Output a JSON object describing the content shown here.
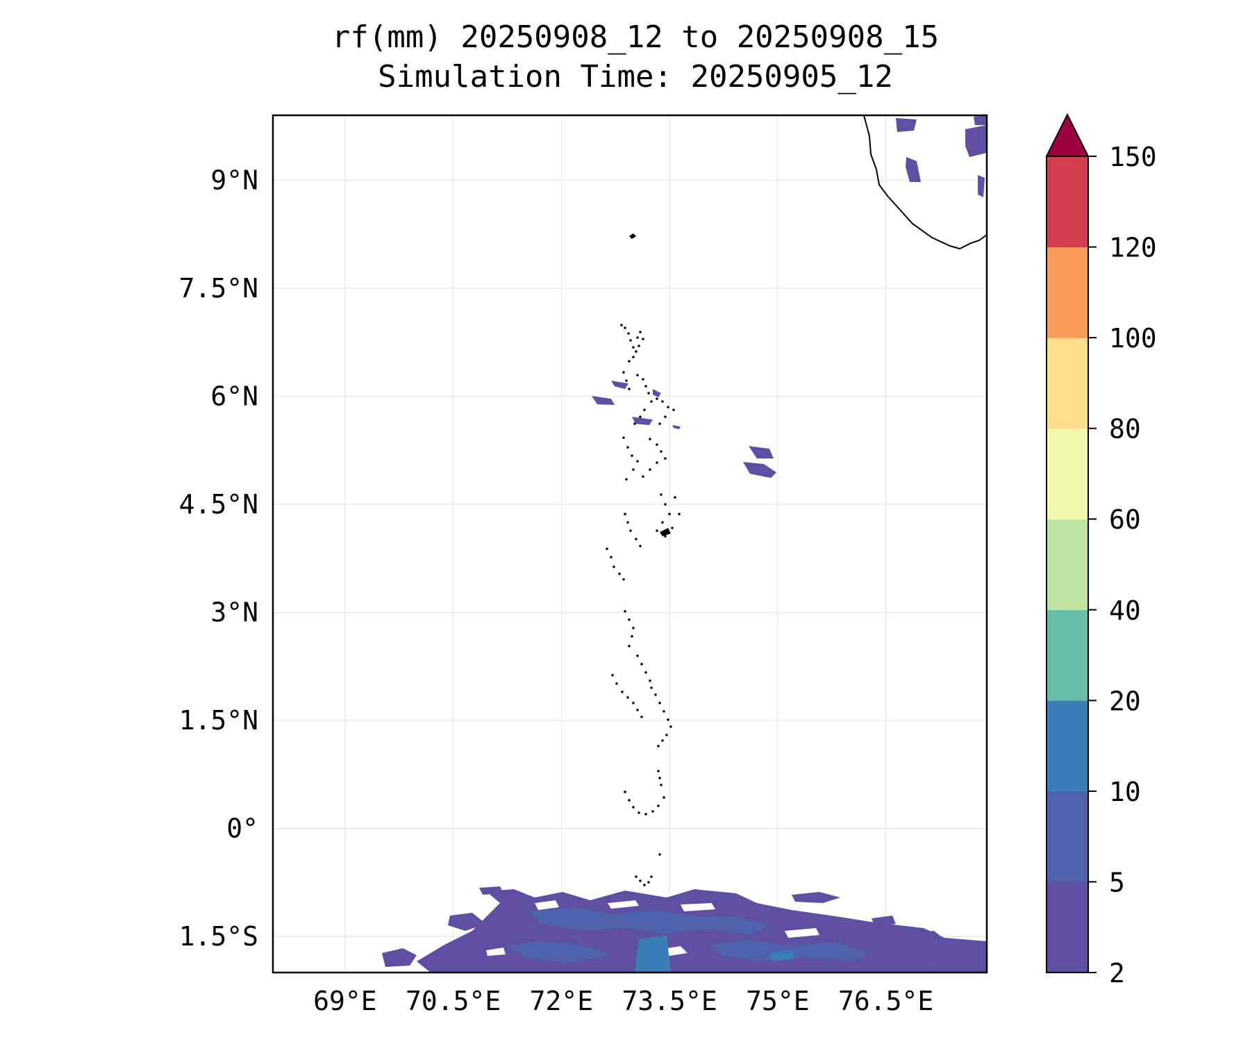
{
  "title": {
    "line1": "rf(mm) 20250908_12 to 20250908_15",
    "line2": "Simulation Time: 20250905_12"
  },
  "map": {
    "lon_range": [
      68.0,
      77.9
    ],
    "lat_range": [
      -2.0,
      9.9
    ],
    "x_ticks": [
      {
        "value": 69.0,
        "label": "69°E"
      },
      {
        "value": 70.5,
        "label": "70.5°E"
      },
      {
        "value": 72.0,
        "label": "72°E"
      },
      {
        "value": 73.5,
        "label": "73.5°E"
      },
      {
        "value": 75.0,
        "label": "75°E"
      },
      {
        "value": 76.5,
        "label": "76.5°E"
      }
    ],
    "y_ticks": [
      {
        "value": 9.0,
        "label": "9°N"
      },
      {
        "value": 7.5,
        "label": "7.5°N"
      },
      {
        "value": 6.0,
        "label": "6°N"
      },
      {
        "value": 4.5,
        "label": "4.5°N"
      },
      {
        "value": 3.0,
        "label": "3°N"
      },
      {
        "value": 1.5,
        "label": "1.5°N"
      },
      {
        "value": 0.0,
        "label": "0°"
      },
      {
        "value": -1.5,
        "label": "1.5°S"
      }
    ],
    "grid": true,
    "coastline_color": "#000000"
  },
  "colorbar": {
    "position": "right",
    "extend": "max",
    "levels": [
      {
        "label": "2",
        "color": "#5e4fa2"
      },
      {
        "label": "5",
        "color": "#4f62ab"
      },
      {
        "label": "10",
        "color": "#3a7eb8"
      },
      {
        "label": "20",
        "color": "#66bea9"
      },
      {
        "label": "40",
        "color": "#bde4a0"
      },
      {
        "label": "60",
        "color": "#f2f9ad"
      },
      {
        "label": "80",
        "color": "#fddf8b"
      },
      {
        "label": "100",
        "color": "#f99c5a"
      },
      {
        "label": "120",
        "color": "#d53e4f"
      },
      {
        "label": "150",
        "color": "#9e0142"
      }
    ]
  },
  "chart_data": {
    "type": "heatmap",
    "title": "rf(mm) 20250908_12 to 20250908_15\nSimulation Time: 20250905_12",
    "xlabel": "",
    "ylabel": "",
    "xlim": [
      68.0,
      77.9
    ],
    "ylim": [
      -2.0,
      9.9
    ],
    "units": "mm",
    "color_levels": [
      2,
      5,
      10,
      20,
      40,
      60,
      80,
      100,
      120,
      150
    ],
    "rain_regions": [
      {
        "lon": [
          74.6,
          75.2
        ],
        "lat": [
          5.3,
          5.8
        ],
        "range_mm": "2-5"
      },
      {
        "lon": [
          71.9,
          73.5
        ],
        "lat": [
          5.4,
          6.4
        ],
        "range_mm": "2-5"
      },
      {
        "lon": [
          70.6,
          77.9
        ],
        "lat": [
          -2.0,
          -0.6
        ],
        "range_mm": "2-10"
      },
      {
        "lon": [
          73.0,
          73.7
        ],
        "lat": [
          -2.0,
          -1.3
        ],
        "range_mm": "10-20"
      },
      {
        "lon": [
          76.8,
          77.9
        ],
        "lat": [
          8.5,
          9.9
        ],
        "range_mm": "2-5"
      }
    ]
  }
}
